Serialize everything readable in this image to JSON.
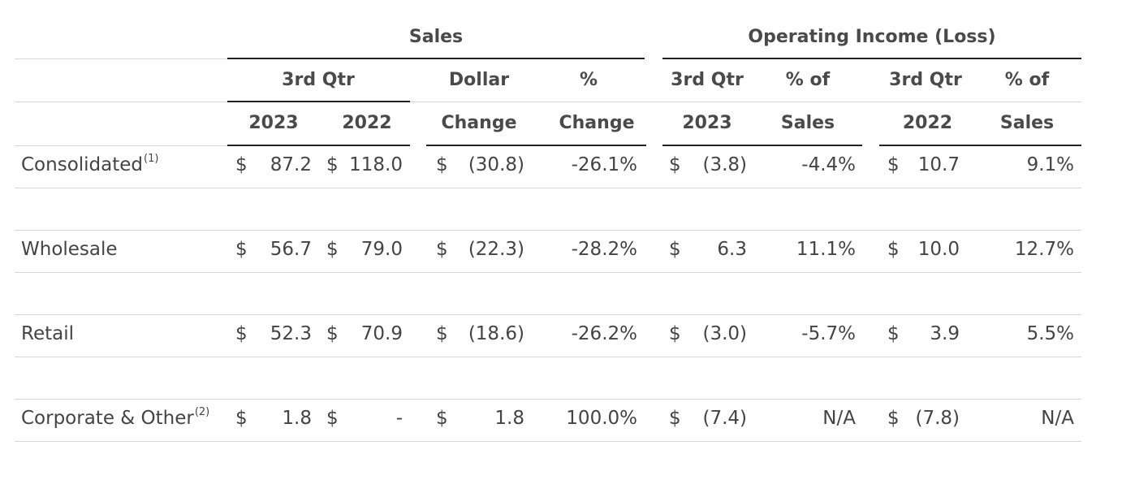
{
  "headers": {
    "group_sales": "Sales",
    "group_oi": "Operating Income (Loss)",
    "row1": [
      "3rd Qtr",
      "Dollar",
      "%",
      "3rd Qtr",
      "% of",
      "3rd Qtr",
      "% of"
    ],
    "row2": [
      "2023",
      "2022",
      "Change",
      "Change",
      "2023",
      "Sales",
      "2022",
      "Sales"
    ]
  },
  "rows": [
    {
      "label": "Consolidated",
      "note": "(1)",
      "values": [
        "87.2",
        "118.0",
        "(30.8)",
        "-26.1%",
        "(3.8)",
        "-4.4%",
        "10.7",
        "9.1%"
      ]
    },
    {
      "label": "Wholesale",
      "note": "",
      "values": [
        "56.7",
        "79.0",
        "(22.3)",
        "-28.2%",
        "6.3",
        "11.1%",
        "10.0",
        "12.7%"
      ]
    },
    {
      "label": "Retail",
      "note": "",
      "values": [
        "52.3",
        "70.9",
        "(18.6)",
        "-26.2%",
        "(3.0)",
        "-5.7%",
        "3.9",
        "5.5%"
      ]
    },
    {
      "label": "Corporate & Other",
      "note": "(2)",
      "values": [
        "1.8",
        "-",
        "1.8",
        "100.0%",
        "(7.4)",
        "N/A",
        "(7.8)",
        "N/A"
      ]
    }
  ],
  "currency_symbol": "$"
}
